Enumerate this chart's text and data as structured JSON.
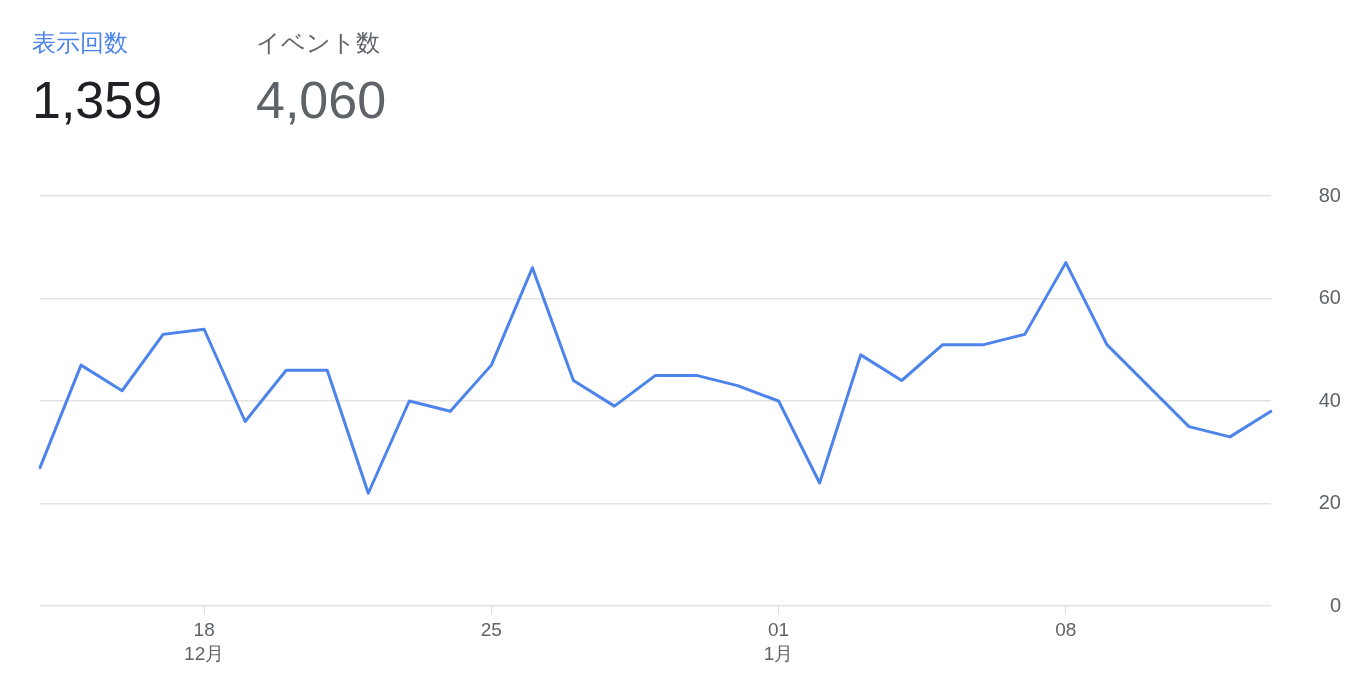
{
  "chart_data": {
    "type": "line",
    "categories": [
      null,
      null,
      null,
      null,
      "18\n12月",
      null,
      null,
      null,
      null,
      null,
      null,
      "25",
      null,
      null,
      null,
      null,
      null,
      null,
      "01\n1月",
      null,
      null,
      null,
      null,
      null,
      null,
      "08",
      null,
      null,
      null,
      null,
      null
    ],
    "series": [
      {
        "name": "表示回数",
        "color": "#4c84ec",
        "values": [
          27,
          47,
          42,
          53,
          54,
          36,
          46,
          46,
          22,
          40,
          38,
          47,
          66,
          44,
          39,
          45,
          45,
          43,
          40,
          24,
          49,
          44,
          51,
          51,
          53,
          67,
          51,
          43,
          35,
          33,
          38
        ]
      }
    ],
    "ylim": [
      0,
      80
    ],
    "yticks": [
      0,
      20,
      40,
      60,
      80
    ],
    "grid": "y",
    "legend": "top left",
    "annotations": [
      "1,359",
      "イベント数",
      "4,060"
    ]
  }
}
